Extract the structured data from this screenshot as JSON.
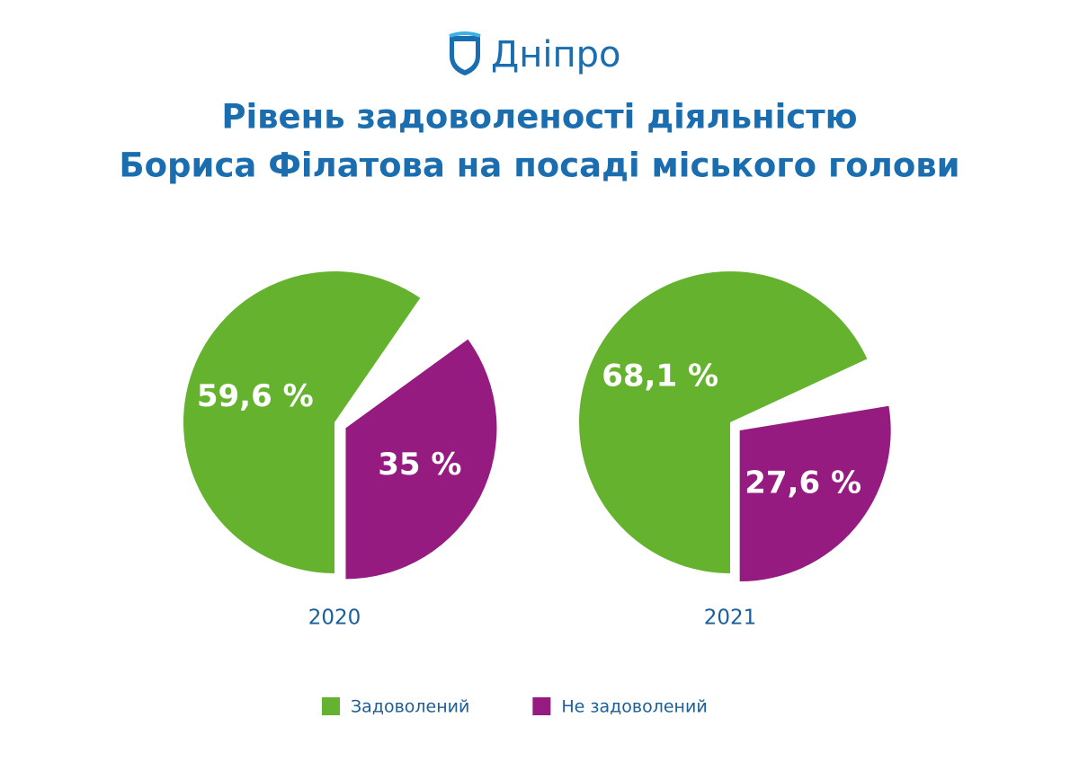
{
  "header": {
    "logo": "Дніпро",
    "title": [
      "Рівень задоволеності діяльністю",
      "Бориса Філатова на посаді міського голови"
    ]
  },
  "legend": {
    "labels": [
      "Задоволений",
      "Не задоволений"
    ],
    "colors": [
      "#65b22e",
      "#951b81"
    ]
  },
  "chart_data": [
    {
      "type": "pie",
      "title": "2020",
      "values": [
        59.6,
        35
      ],
      "value_labels": [
        "59,6 %",
        "35 %"
      ]
    },
    {
      "type": "pie",
      "title": "2021",
      "values": [
        68.1,
        27.6
      ],
      "value_labels": [
        "68,1 %",
        "27,6 %"
      ]
    }
  ]
}
